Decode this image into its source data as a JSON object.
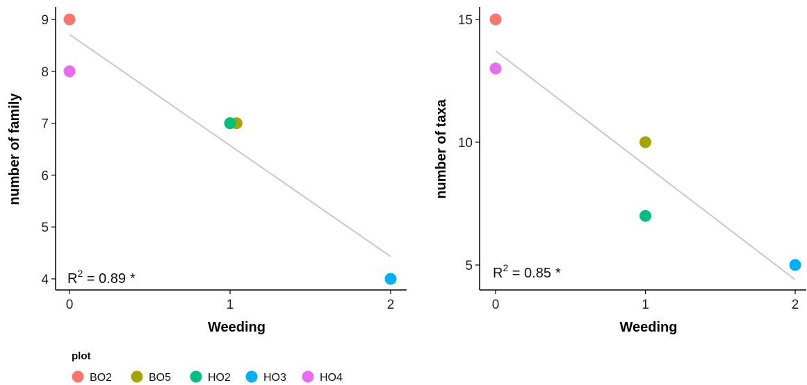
{
  "chart_data": [
    {
      "type": "scatter",
      "title": "",
      "xlabel": "Weeding",
      "ylabel": "number of family",
      "xlim": [
        -0.1,
        2.05
      ],
      "ylim": [
        3.7,
        9.2
      ],
      "xticks": [
        "0",
        "1",
        "2"
      ],
      "yticks": [
        "4",
        "5",
        "6",
        "7",
        "8",
        "9"
      ],
      "series": [
        {
          "name": "BO2",
          "x": [
            0
          ],
          "y": [
            9
          ]
        },
        {
          "name": "BO5",
          "x": [
            1.04
          ],
          "y": [
            7
          ]
        },
        {
          "name": "HO2",
          "x": [
            1.0
          ],
          "y": [
            7
          ]
        },
        {
          "name": "HO3",
          "x": [
            2
          ],
          "y": [
            4
          ]
        },
        {
          "name": "HO4",
          "x": [
            0
          ],
          "y": [
            8
          ]
        }
      ],
      "fit_line": {
        "x": [
          0,
          2
        ],
        "y": [
          8.71,
          4.43
        ]
      },
      "annotation": {
        "prefix": "R",
        "sup": "2",
        "value": " = 0.89",
        "sig": "*"
      },
      "grid": false
    },
    {
      "type": "scatter",
      "title": "",
      "xlabel": "Weeding",
      "ylabel": "number of taxa",
      "xlim": [
        -0.1,
        2.05
      ],
      "ylim": [
        4,
        15.5
      ],
      "xticks": [
        "0",
        "1",
        "2"
      ],
      "yticks": [
        "5",
        "10",
        "15"
      ],
      "series": [
        {
          "name": "BO2",
          "x": [
            0
          ],
          "y": [
            15
          ]
        },
        {
          "name": "BO5",
          "x": [
            1
          ],
          "y": [
            10
          ]
        },
        {
          "name": "HO2",
          "x": [
            1
          ],
          "y": [
            7
          ]
        },
        {
          "name": "HO3",
          "x": [
            2
          ],
          "y": [
            5
          ]
        },
        {
          "name": "HO4",
          "x": [
            0
          ],
          "y": [
            13
          ]
        }
      ],
      "fit_line": {
        "x": [
          0,
          2
        ],
        "y": [
          13.72,
          4.4
        ]
      },
      "annotation": {
        "prefix": "R",
        "sup": "2",
        "value": " = 0.85",
        "sig": "*"
      },
      "grid": false
    }
  ],
  "legend": {
    "title": "plot",
    "placement": "bottom-left",
    "items": [
      {
        "label": "BO2",
        "color": "#F8766D"
      },
      {
        "label": "BO5",
        "color": "#A3A500"
      },
      {
        "label": "HO2",
        "color": "#00BF7D"
      },
      {
        "label": "HO3",
        "color": "#00B0F6"
      },
      {
        "label": "HO4",
        "color": "#E76BF3"
      }
    ]
  },
  "style": {
    "fit_line_color": "#c8c8c8",
    "axis_color": "#000000"
  }
}
